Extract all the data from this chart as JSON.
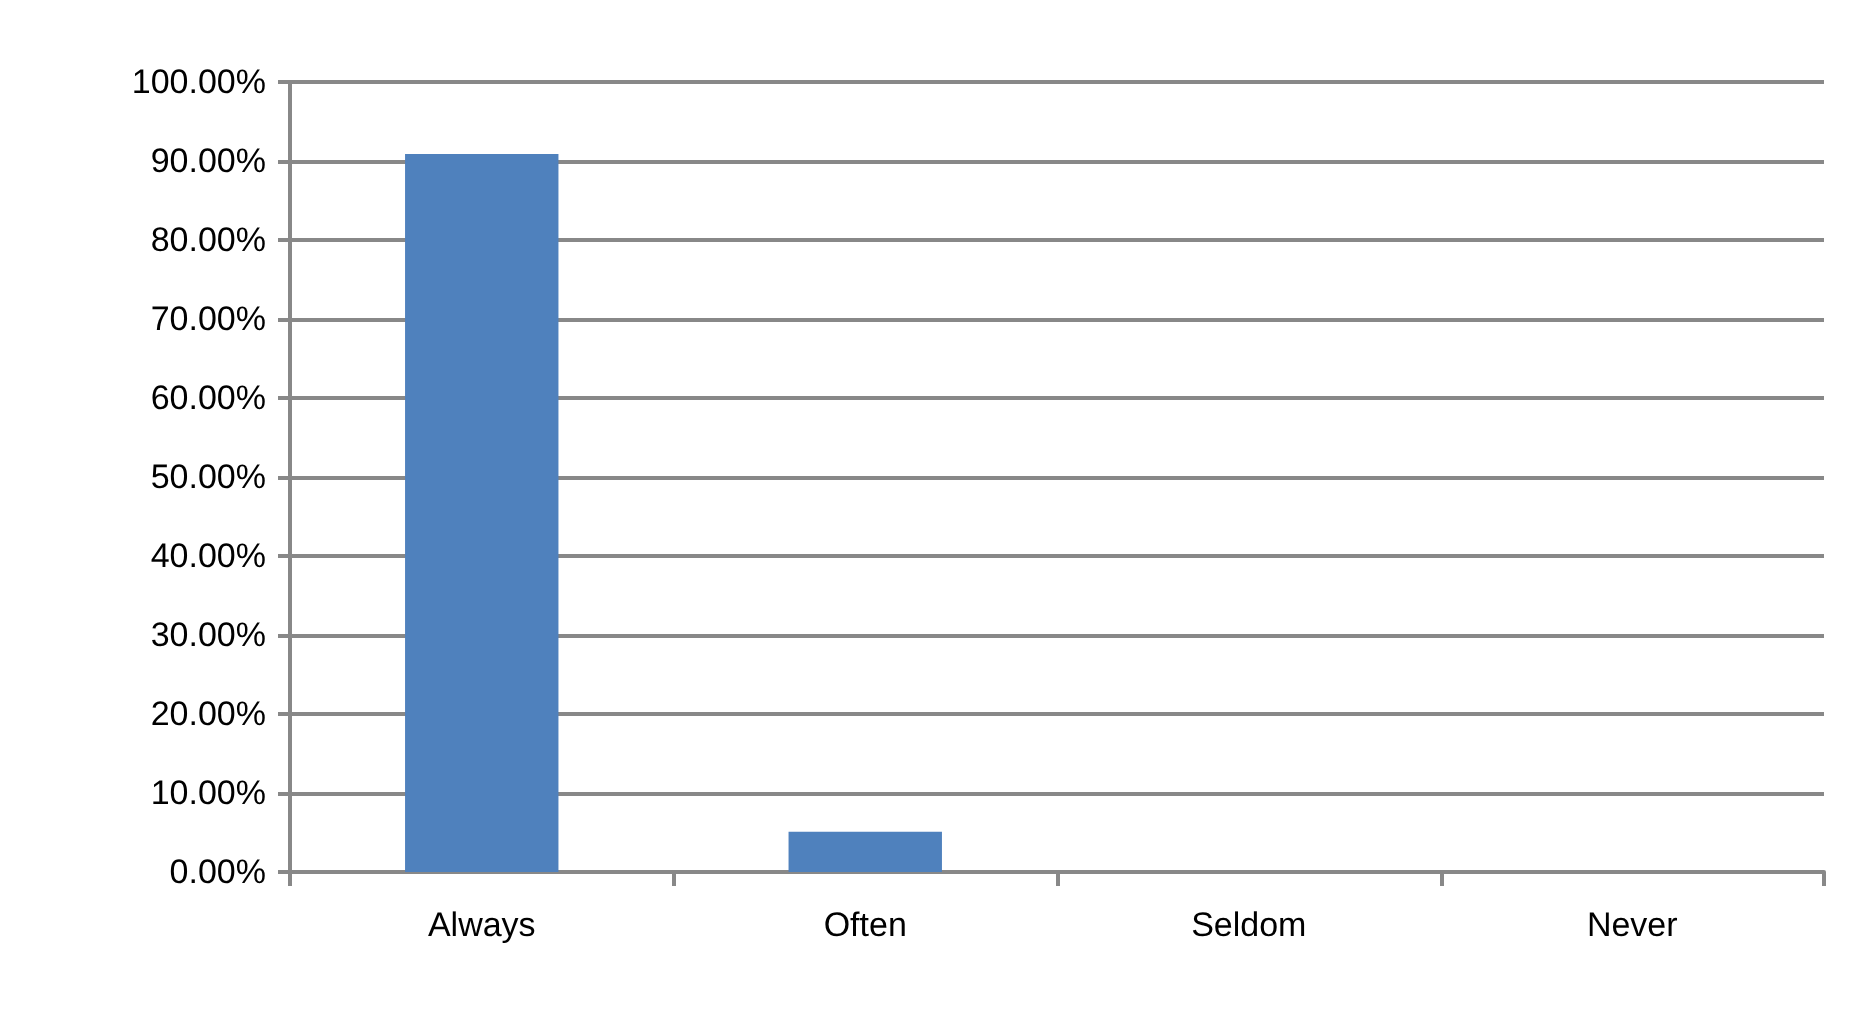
{
  "chart_data": {
    "type": "bar",
    "categories": [
      "Always",
      "Often",
      "Seldom",
      "Never"
    ],
    "values": [
      90.9,
      5.1,
      0,
      0
    ],
    "color": "#4f81bd",
    "ylim": [
      0,
      100
    ],
    "yticks": [
      {
        "value": 0,
        "label": "0.00%"
      },
      {
        "value": 10,
        "label": "10.00%"
      },
      {
        "value": 20,
        "label": "20.00%"
      },
      {
        "value": 30,
        "label": "30.00%"
      },
      {
        "value": 40,
        "label": "40.00%"
      },
      {
        "value": 50,
        "label": "50.00%"
      },
      {
        "value": 60,
        "label": "60.00%"
      },
      {
        "value": 70,
        "label": "70.00%"
      },
      {
        "value": 80,
        "label": "80.00%"
      },
      {
        "value": 90,
        "label": "90.00%"
      },
      {
        "value": 100,
        "label": "100.00%"
      }
    ],
    "grid": "y"
  }
}
